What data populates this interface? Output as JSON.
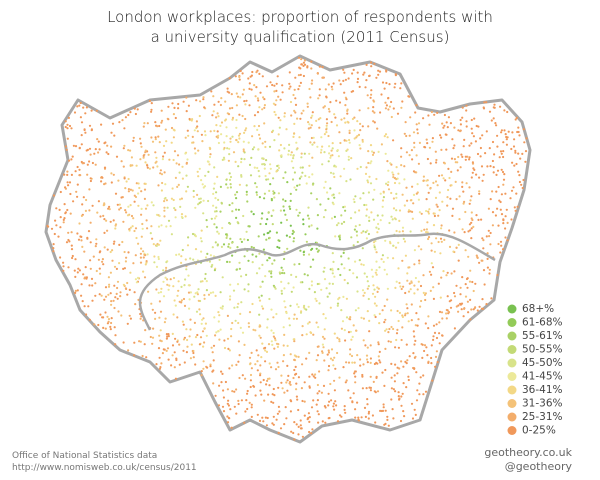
{
  "title": [
    "London workplaces: proportion of respondents with",
    "a university qualification (2011 Census)"
  ],
  "legend": [
    {
      "label": "68+%",
      "color": "#79c150"
    },
    {
      "label": "61-68%",
      "color": "#93cb58"
    },
    {
      "label": "55-61%",
      "color": "#a9d165"
    },
    {
      "label": "50-55%",
      "color": "#c3da76"
    },
    {
      "label": "45-50%",
      "color": "#d8e38a"
    },
    {
      "label": "41-45%",
      "color": "#ece999"
    },
    {
      "label": "36-41%",
      "color": "#f3d886"
    },
    {
      "label": "31-36%",
      "color": "#f4c278"
    },
    {
      "label": "25-31%",
      "color": "#f3ad6b"
    },
    {
      "label": "0-25%",
      "color": "#f0985a"
    }
  ],
  "source": [
    "Office of National Statistics data",
    "http://www.nomisweb.co.uk/census/2011"
  ],
  "credit": [
    "geotheory.co.uk",
    "@geotheory"
  ]
}
